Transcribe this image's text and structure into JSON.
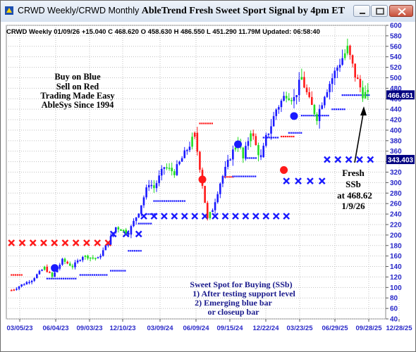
{
  "window": {
    "title_plain": "CRWD  Weekly/CRWD  Monthly ",
    "title_bold": "AbleTrend Fresh Sweet Sport Signal by 4pm ET"
  },
  "info_line": "CRWD  Weekly 01/09/26 +15.040 C 468.620 O 458.630 H 486.550 L 451.290 11.79M Updated: 06:58:40",
  "legend_box": {
    "lines": [
      {
        "text": "Buy on Blue",
        "color": "#2b3de0"
      },
      {
        "text": "Sell on Red",
        "color": "#e01f1f"
      },
      {
        "text": "Trading Made Easy",
        "color": "#2e9e2e"
      },
      {
        "text": "AbleSys Since 1994",
        "color": "#2e9e2e"
      }
    ]
  },
  "annotation_fresh": {
    "lines": [
      "Fresh",
      "SSb",
      "at 468.62",
      "1/9/26"
    ]
  },
  "annotation_sweet": {
    "lines": [
      "Sweet Spot for Buying (SSb)",
      "1) After testing support level",
      "2) Emerging blue bar",
      "or closeup bar"
    ]
  },
  "colors": {
    "up": "#1a1aff",
    "down": "#ff1a1a",
    "neutral": "#22dd22",
    "axis_text": "#2828c8",
    "grid": "#c0c0c0",
    "price_box": "#000080"
  },
  "chart_data": {
    "type": "candlestick",
    "ticker": "CRWD",
    "timeframe": "Weekly",
    "y_axis": {
      "min": 40,
      "max": 600,
      "ticks": [
        40,
        60,
        80,
        100,
        120,
        140,
        160,
        180,
        200,
        220,
        240,
        260,
        280,
        300,
        320,
        340,
        360,
        380,
        400,
        420,
        440,
        460,
        480,
        500,
        520,
        540,
        560,
        580,
        600
      ]
    },
    "x_axis": {
      "labels": [
        "03/05/23",
        "06/04/23",
        "09/03/23",
        "12/10/23",
        "03/09/24",
        "06/09/24",
        "09/15/24",
        "12/22/24",
        "03/23/25",
        "06/29/25",
        "09/28/25",
        "12/28/25"
      ]
    },
    "price_tags": [
      {
        "value": "466.651",
        "y": 466.651
      },
      {
        "value": "343.403",
        "y": 343.403
      }
    ],
    "price_path": [
      {
        "t": -8,
        "v": 95
      },
      {
        "t": 0,
        "v": 115
      },
      {
        "t": 5,
        "v": 138
      },
      {
        "t": 8,
        "v": 120
      },
      {
        "t": 12,
        "v": 152
      },
      {
        "t": 16,
        "v": 140
      },
      {
        "t": 20,
        "v": 160
      },
      {
        "t": 26,
        "v": 155
      },
      {
        "t": 30,
        "v": 185
      },
      {
        "t": 33,
        "v": 215
      },
      {
        "t": 38,
        "v": 205
      },
      {
        "t": 42,
        "v": 245
      },
      {
        "t": 46,
        "v": 300
      },
      {
        "t": 48,
        "v": 290
      },
      {
        "t": 52,
        "v": 330
      },
      {
        "t": 56,
        "v": 320
      },
      {
        "t": 60,
        "v": 355
      },
      {
        "t": 64,
        "v": 390
      },
      {
        "t": 66,
        "v": 330
      },
      {
        "t": 69,
        "v": 230
      },
      {
        "t": 71,
        "v": 250
      },
      {
        "t": 74,
        "v": 300
      },
      {
        "t": 78,
        "v": 350
      },
      {
        "t": 81,
        "v": 380
      },
      {
        "t": 83,
        "v": 345
      },
      {
        "t": 86,
        "v": 400
      },
      {
        "t": 88,
        "v": 370
      },
      {
        "t": 90,
        "v": 345
      },
      {
        "t": 92,
        "v": 385
      },
      {
        "t": 94,
        "v": 410
      },
      {
        "t": 96,
        "v": 440
      },
      {
        "t": 100,
        "v": 470
      },
      {
        "t": 103,
        "v": 460
      },
      {
        "t": 106,
        "v": 500
      },
      {
        "t": 109,
        "v": 455
      },
      {
        "t": 112,
        "v": 425
      },
      {
        "t": 115,
        "v": 470
      },
      {
        "t": 118,
        "v": 500
      },
      {
        "t": 121,
        "v": 530
      },
      {
        "t": 124,
        "v": 555
      },
      {
        "t": 127,
        "v": 505
      },
      {
        "t": 130,
        "v": 470
      },
      {
        "t": 132,
        "v": 468
      }
    ],
    "signal_dots": [
      {
        "t": 9,
        "v": 137,
        "color": "blue"
      },
      {
        "t": 67,
        "v": 306,
        "color": "red"
      },
      {
        "t": 81,
        "v": 373,
        "color": "blue"
      },
      {
        "t": 99,
        "v": 324,
        "color": "red"
      },
      {
        "t": 103,
        "v": 427,
        "color": "blue"
      }
    ],
    "stop_dots": [
      {
        "t0": -8,
        "t1": -4,
        "v": 124,
        "color": "red"
      },
      {
        "t0": 6,
        "t1": 18,
        "v": 117,
        "color": "blue"
      },
      {
        "t0": 19,
        "t1": 30,
        "v": 124,
        "color": "blue"
      },
      {
        "t0": 31,
        "t1": 37,
        "v": 132,
        "color": "blue"
      },
      {
        "t0": 38,
        "t1": 43,
        "v": 170,
        "color": "blue"
      },
      {
        "t0": 42,
        "t1": 47,
        "v": 222,
        "color": "blue"
      },
      {
        "t0": 45,
        "t1": 49,
        "v": 240,
        "color": "blue"
      },
      {
        "t0": 48,
        "t1": 60,
        "v": 265,
        "color": "blue"
      },
      {
        "t0": 66,
        "t1": 71,
        "v": 413,
        "color": "red"
      },
      {
        "t0": 75,
        "t1": 79,
        "v": 311,
        "color": "red"
      },
      {
        "t0": 79,
        "t1": 88,
        "v": 312,
        "color": "blue"
      },
      {
        "t0": 84,
        "t1": 88,
        "v": 347,
        "color": "blue"
      },
      {
        "t0": 91,
        "t1": 97,
        "v": 386,
        "color": "blue"
      },
      {
        "t0": 98,
        "t1": 103,
        "v": 388,
        "color": "red"
      },
      {
        "t0": 101,
        "t1": 106,
        "v": 395,
        "color": "blue"
      },
      {
        "t0": 106,
        "t1": 117,
        "v": 428,
        "color": "blue"
      },
      {
        "t0": 118,
        "t1": 123,
        "v": 440,
        "color": "blue"
      },
      {
        "t0": 122,
        "t1": 133,
        "v": 467,
        "color": "blue"
      }
    ],
    "x_markers": [
      {
        "t0": -8,
        "t1": 30,
        "count": 10,
        "v": 185,
        "color": "red"
      },
      {
        "t0": 32,
        "t1": 42,
        "count": 3,
        "v": 202,
        "color": "blue"
      },
      {
        "t0": 44,
        "t1": 100,
        "count": 15,
        "v": 236,
        "color": "blue"
      },
      {
        "t0": 100,
        "t1": 114,
        "count": 4,
        "v": 303,
        "color": "blue"
      },
      {
        "t0": 116,
        "t1": 133,
        "count": 5,
        "v": 344,
        "color": "blue"
      }
    ]
  }
}
